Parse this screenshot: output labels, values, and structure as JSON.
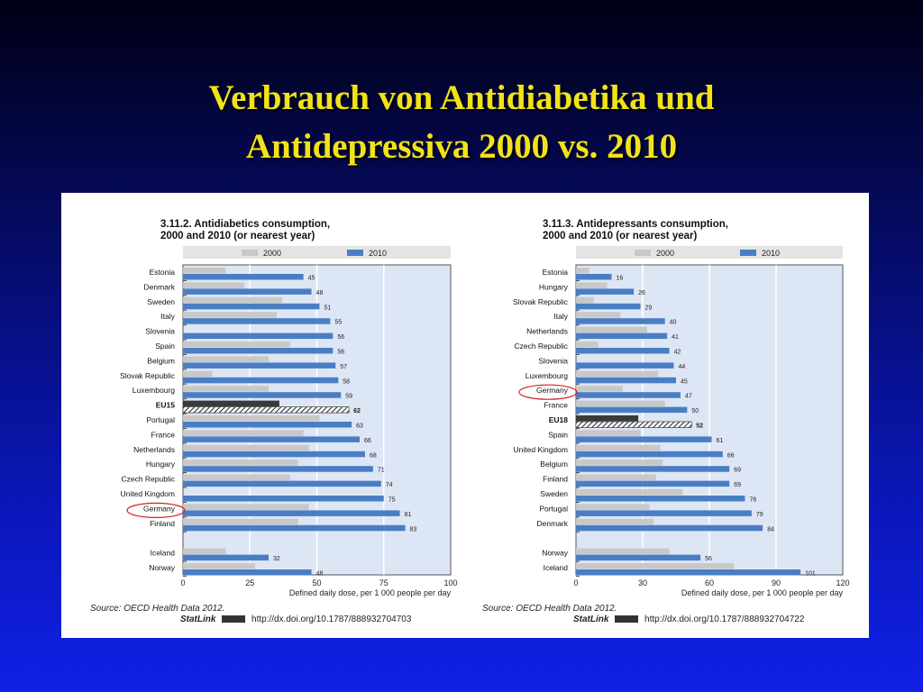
{
  "slide": {
    "title_line1": "Verbrauch von Antidiabetika und",
    "title_line2": "Antidepressiva 2000 vs. 2010"
  },
  "colors": {
    "bar_2000": "#c8c8c8",
    "bar_2010": "#4a7ec4",
    "eu_2000": "#3a3a3a",
    "plot_bg": "#dde6f4",
    "highlight_circle": "#d42020"
  },
  "chart_data": [
    {
      "type": "bar",
      "orientation": "horizontal",
      "title_line1": "3.11.2. Antidiabetics consumption,",
      "title_line2": "2000 and 2010 (or nearest year)",
      "xlabel": "Defined daily dose, per 1 000 people per day",
      "xlim": [
        0,
        100
      ],
      "xticks": [
        "0",
        "25",
        "50",
        "75",
        "100"
      ],
      "legend": [
        "2000",
        "2010"
      ],
      "legend_position": "top",
      "grid": true,
      "highlighted": "Germany",
      "average_row": "EU15",
      "rows": [
        {
          "label": "Estonia",
          "v2000": 16,
          "v2010": 45
        },
        {
          "label": "Denmark",
          "v2000": 23,
          "v2010": 48
        },
        {
          "label": "Sweden",
          "v2000": 37,
          "v2010": 51
        },
        {
          "label": "Italy",
          "v2000": 35,
          "v2010": 55
        },
        {
          "label": "Slovenia",
          "v2000": null,
          "v2010": 56
        },
        {
          "label": "Spain",
          "v2000": 40,
          "v2010": 56
        },
        {
          "label": "Belgium",
          "v2000": 32,
          "v2010": 57
        },
        {
          "label": "Slovak Republic",
          "v2000": 11,
          "v2010": 58
        },
        {
          "label": "Luxembourg",
          "v2000": 32,
          "v2010": 59
        },
        {
          "label": "EU15",
          "v2000": 36,
          "v2010": 62
        },
        {
          "label": "Portugal",
          "v2000": 51,
          "v2010": 63
        },
        {
          "label": "France",
          "v2000": 45,
          "v2010": 66
        },
        {
          "label": "Netherlands",
          "v2000": 47,
          "v2010": 68
        },
        {
          "label": "Hungary",
          "v2000": 43,
          "v2010": 71
        },
        {
          "label": "Czech Republic",
          "v2000": 40,
          "v2010": 74
        },
        {
          "label": "United Kingdom",
          "v2000": null,
          "v2010": 75
        },
        {
          "label": "Germany",
          "v2000": 47,
          "v2010": 81
        },
        {
          "label": "Finland",
          "v2000": 43,
          "v2010": 83
        },
        {
          "label": "",
          "v2000": null,
          "v2010": null
        },
        {
          "label": "Iceland",
          "v2000": 16,
          "v2010": 32
        },
        {
          "label": "Norway",
          "v2000": 27,
          "v2010": 48
        }
      ],
      "source": "Source: OECD Health Data 2012.",
      "statlink_label": "StatLink",
      "statlink_url": "http://dx.doi.org/10.1787/888932704703"
    },
    {
      "type": "bar",
      "orientation": "horizontal",
      "title_line1": "3.11.3. Antidepressants consumption,",
      "title_line2": "2000 and 2010 (or nearest year)",
      "xlabel": "Defined daily dose, per 1 000 people per day",
      "xlim": [
        0,
        120
      ],
      "xticks": [
        "0",
        "30",
        "60",
        "90",
        "120"
      ],
      "legend": [
        "2000",
        "2010"
      ],
      "legend_position": "top",
      "grid": true,
      "highlighted": "Germany",
      "average_row": "EU18",
      "rows": [
        {
          "label": "Estonia",
          "v2000": 6,
          "v2010": 16
        },
        {
          "label": "Hungary",
          "v2000": 14,
          "v2010": 26
        },
        {
          "label": "Slovak Republic",
          "v2000": 8,
          "v2010": 29
        },
        {
          "label": "Italy",
          "v2000": 20,
          "v2010": 40
        },
        {
          "label": "Netherlands",
          "v2000": 32,
          "v2010": 41
        },
        {
          "label": "Czech Republic",
          "v2000": 10,
          "v2010": 42
        },
        {
          "label": "Slovenia",
          "v2000": null,
          "v2010": 44
        },
        {
          "label": "Luxembourg",
          "v2000": 37,
          "v2010": 45
        },
        {
          "label": "Germany",
          "v2000": 21,
          "v2010": 47
        },
        {
          "label": "France",
          "v2000": 40,
          "v2010": 50
        },
        {
          "label": "EU18",
          "v2000": 28,
          "v2010": 52
        },
        {
          "label": "Spain",
          "v2000": 29,
          "v2010": 61
        },
        {
          "label": "United Kingdom",
          "v2000": 38,
          "v2010": 66
        },
        {
          "label": "Belgium",
          "v2000": 39,
          "v2010": 69
        },
        {
          "label": "Finland",
          "v2000": 36,
          "v2010": 69
        },
        {
          "label": "Sweden",
          "v2000": 48,
          "v2010": 76
        },
        {
          "label": "Portugal",
          "v2000": 33,
          "v2010": 79
        },
        {
          "label": "Denmark",
          "v2000": 35,
          "v2010": 84
        },
        {
          "label": "",
          "v2000": null,
          "v2010": null
        },
        {
          "label": "Norway",
          "v2000": 42,
          "v2010": 56
        },
        {
          "label": "Iceland",
          "v2000": 71,
          "v2010": 101
        }
      ],
      "source": "Source: OECD Health Data 2012.",
      "statlink_label": "StatLink",
      "statlink_url": "http://dx.doi.org/10.1787/888932704722"
    }
  ]
}
